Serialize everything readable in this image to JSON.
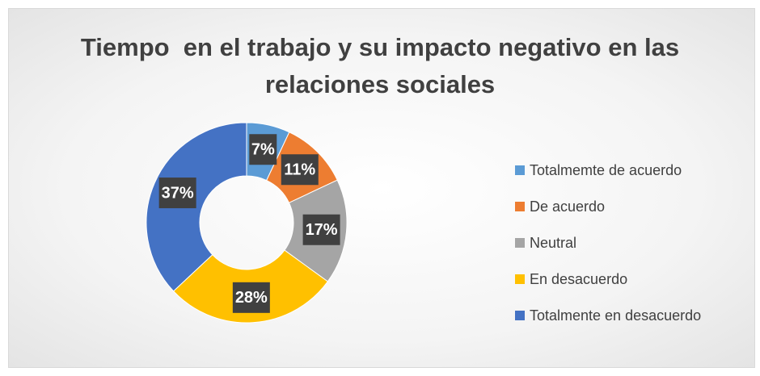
{
  "chart_data": {
    "type": "pie",
    "title": "Tiempo  en el trabajo y su impacto negativo en las relaciones sociales",
    "categories": [
      "Totalmemte de acuerdo",
      "De acuerdo",
      "Neutral",
      "En desacuerdo",
      "Totalmente en desacuerdo"
    ],
    "values": [
      7,
      11,
      17,
      28,
      37
    ],
    "value_labels": [
      "7%",
      "11%",
      "17%",
      "28%",
      "37%"
    ],
    "colors": [
      "#5b9bd5",
      "#ed7d31",
      "#a5a5a5",
      "#ffc000",
      "#4472c4"
    ],
    "legend": "right"
  }
}
